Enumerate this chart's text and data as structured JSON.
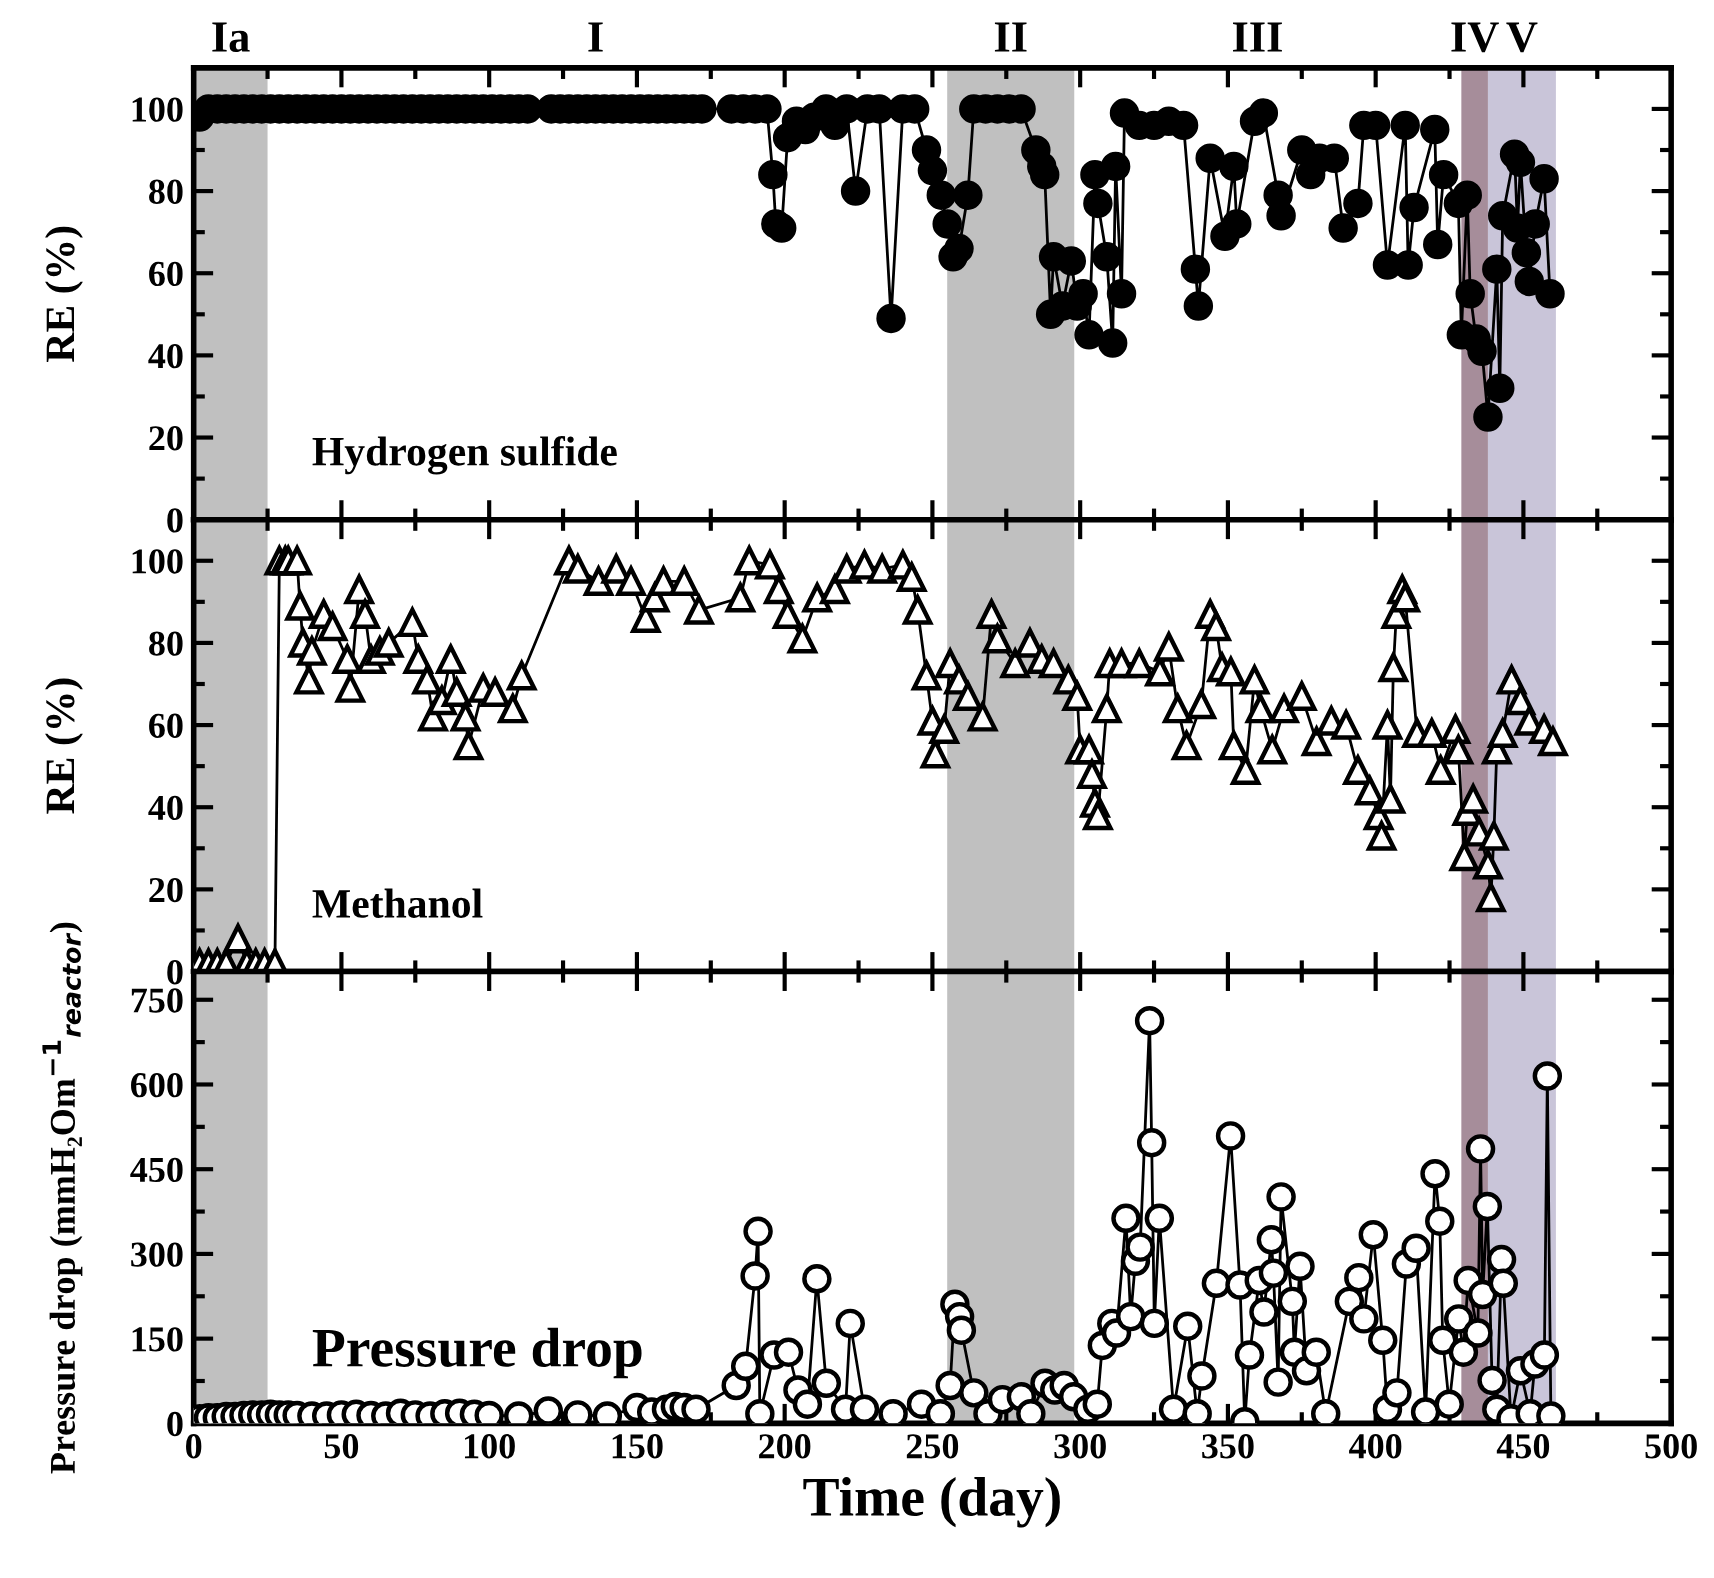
{
  "chart_data": [
    {
      "type": "line",
      "ylabel": "RE (%)",
      "xlim": [
        0,
        500
      ],
      "xticks": [
        0,
        50,
        100,
        150,
        200,
        250,
        300,
        350,
        400,
        450,
        500
      ],
      "ylim": [
        0,
        110
      ],
      "yticks": [
        0,
        20,
        40,
        60,
        80,
        100
      ],
      "tick_labels": "y",
      "marker": "circle",
      "line_style": "solid",
      "grid": false,
      "annotations": [
        "Hydrogen sulfide",
        "I",
        "III"
      ],
      "bands": [
        {
          "axis": "x",
          "from": 0,
          "to": 25,
          "color": "#c0c0c0",
          "label": "Ia"
        },
        {
          "axis": "x",
          "from": 255,
          "to": 298,
          "color": "#c0c0c0",
          "label": "II"
        },
        {
          "axis": "x",
          "from": 429,
          "to": 438,
          "color": "#a68d9a",
          "label": "IV"
        },
        {
          "axis": "x",
          "from": 438,
          "to": 461,
          "color": "#c9c5d9",
          "label": "V"
        }
      ],
      "series": [
        {
          "color": "#000000",
          "x": [
            2,
            5,
            8,
            11,
            14,
            17,
            20,
            23,
            26,
            29,
            32,
            35,
            38,
            41,
            44,
            47,
            50,
            53,
            56,
            59,
            62,
            65,
            68,
            71,
            74,
            77,
            80,
            83,
            86,
            89,
            92,
            95,
            98,
            101,
            104,
            107,
            110,
            113,
            121,
            124,
            127,
            130,
            133,
            136,
            139,
            142,
            145,
            148,
            151,
            154,
            157,
            160,
            163,
            166,
            169,
            172,
            182,
            186,
            190,
            194,
            196,
            197,
            199,
            201,
            204,
            207,
            210,
            214,
            217,
            221,
            224,
            228,
            232,
            236,
            240,
            244,
            248,
            250,
            253,
            255,
            257,
            259,
            262,
            264,
            268,
            272,
            276,
            280,
            285,
            287,
            288,
            290,
            291,
            294,
            297,
            299,
            301,
            303,
            305,
            306,
            309,
            311,
            312,
            314,
            315,
            320,
            325,
            330,
            335,
            339,
            340,
            344,
            349,
            352,
            353,
            359,
            362,
            367,
            368,
            375,
            378,
            381,
            386,
            389,
            394,
            396,
            400,
            404,
            410,
            411,
            413,
            420,
            421,
            423,
            428,
            429,
            431,
            432,
            434,
            436,
            438,
            441,
            442,
            443,
            447,
            448,
            449,
            451,
            452,
            454,
            457,
            459
          ],
          "values": [
            98,
            100,
            100,
            100,
            100,
            100,
            100,
            100,
            100,
            100,
            100,
            100,
            100,
            100,
            100,
            100,
            100,
            100,
            100,
            100,
            100,
            100,
            100,
            100,
            100,
            100,
            100,
            100,
            100,
            100,
            100,
            100,
            100,
            100,
            100,
            100,
            100,
            100,
            100,
            100,
            100,
            100,
            100,
            100,
            100,
            100,
            100,
            100,
            100,
            100,
            100,
            100,
            100,
            100,
            100,
            100,
            100,
            100,
            100,
            100,
            84,
            72,
            71,
            93,
            97,
            95,
            98,
            100,
            96,
            100,
            80,
            100,
            100,
            49,
            100,
            100,
            90,
            85,
            79,
            72,
            64,
            66,
            79,
            100,
            100,
            100,
            100,
            100,
            90,
            86,
            84,
            50,
            64,
            52,
            63,
            52,
            55,
            45,
            84,
            77,
            64,
            43,
            86,
            55,
            99,
            96,
            96,
            97,
            96,
            61,
            52,
            88,
            69,
            86,
            72,
            97,
            99,
            79,
            74,
            90,
            84,
            88,
            88,
            71,
            77,
            96,
            96,
            62,
            96,
            62,
            76,
            95,
            67,
            84,
            77,
            45,
            79,
            55,
            44,
            41,
            25,
            61,
            32,
            74,
            89,
            71,
            87,
            65,
            58,
            72,
            83,
            55
          ]
        }
      ]
    },
    {
      "type": "line",
      "ylabel": "RE (%)",
      "xlim": [
        0,
        500
      ],
      "xticks": [
        0,
        50,
        100,
        150,
        200,
        250,
        300,
        350,
        400,
        450,
        500
      ],
      "ylim": [
        0,
        110
      ],
      "yticks": [
        0,
        20,
        40,
        60,
        80,
        100
      ],
      "tick_labels": "y",
      "marker": "triangle",
      "line_style": "solid",
      "grid": false,
      "annotations": [
        "Methanol"
      ],
      "bands": [
        {
          "axis": "x",
          "from": 0,
          "to": 25,
          "color": "#c0c0c0"
        },
        {
          "axis": "x",
          "from": 255,
          "to": 298,
          "color": "#c0c0c0"
        },
        {
          "axis": "x",
          "from": 429,
          "to": 438,
          "color": "#a68d9a"
        },
        {
          "axis": "x",
          "from": 438,
          "to": 461,
          "color": "#c9c5d9"
        }
      ],
      "series": [
        {
          "color": "#ffffff",
          "x": [
            2,
            5,
            8,
            11,
            15,
            18,
            21,
            24,
            27.5,
            29,
            31,
            32,
            35,
            36,
            37,
            39,
            40,
            44,
            47,
            52,
            53,
            56,
            58,
            60,
            63,
            66,
            74,
            76,
            79,
            81,
            84,
            87,
            89,
            92,
            93,
            98,
            102,
            108,
            111,
            127,
            130,
            137,
            143,
            148,
            153,
            156,
            159,
            166,
            171,
            185,
            188,
            195,
            198,
            201,
            206,
            211,
            217,
            221,
            227,
            233,
            240,
            243,
            245,
            248,
            250,
            251,
            254,
            256,
            259,
            262,
            267,
            270,
            272,
            278,
            283,
            287,
            291,
            296,
            299,
            300,
            303,
            304,
            305,
            306,
            309,
            310,
            314,
            320,
            327,
            330,
            333,
            336,
            341,
            344,
            346,
            348,
            351,
            352,
            356,
            359,
            361,
            365,
            369,
            375,
            380,
            385,
            390,
            394,
            398,
            401,
            402,
            404,
            405,
            406,
            407,
            409,
            410,
            414,
            419,
            422,
            427,
            428,
            430,
            431,
            433,
            435,
            438,
            439,
            440,
            441,
            443,
            446,
            449,
            452,
            457,
            460
          ],
          "values": [
            2,
            2,
            2,
            2,
            8,
            2,
            2,
            2,
            2,
            100,
            100,
            100,
            100,
            89,
            80,
            71,
            78,
            87,
            84,
            76,
            69,
            93,
            87,
            76,
            78,
            80,
            85,
            76,
            71,
            62,
            66,
            76,
            68,
            62,
            55,
            69,
            68,
            64,
            72,
            100,
            98,
            95,
            98,
            95,
            86,
            91,
            95,
            95,
            88,
            91,
            100,
            99,
            93,
            87,
            81,
            91,
            93,
            98,
            99,
            98,
            99,
            96,
            88,
            72,
            61,
            53,
            59,
            75,
            71,
            67,
            62,
            87,
            81,
            75,
            80,
            76,
            75,
            71,
            67,
            54,
            54,
            48,
            41,
            38,
            64,
            75,
            75,
            75,
            73,
            79,
            64,
            55,
            65,
            87,
            84,
            74,
            73,
            55,
            49,
            71,
            64,
            54,
            64,
            67,
            56,
            61,
            60,
            49,
            44,
            38,
            33,
            60,
            42,
            74,
            87,
            93,
            91,
            58,
            58,
            49,
            59,
            54,
            28,
            39,
            42,
            34,
            26,
            18,
            33,
            54,
            58,
            71,
            66,
            61,
            59,
            56
          ]
        }
      ]
    },
    {
      "type": "line",
      "ylabel": "Pressure drop (mmH₂Om$^{−1}$$_{reactor}$)",
      "xlabel": "Time (day)",
      "xlim": [
        0,
        500
      ],
      "xticks": [
        0,
        50,
        100,
        150,
        200,
        250,
        300,
        350,
        400,
        450,
        500
      ],
      "ylim": [
        0,
        800
      ],
      "yticks": [
        0,
        150,
        300,
        450,
        600,
        750
      ],
      "marker": "circle",
      "line_style": "solid",
      "grid": false,
      "annotations": [
        "Pressure drop"
      ],
      "bands": [
        {
          "axis": "x",
          "from": 0,
          "to": 25,
          "color": "#c0c0c0"
        },
        {
          "axis": "x",
          "from": 255,
          "to": 298,
          "color": "#c0c0c0"
        },
        {
          "axis": "x",
          "from": 429,
          "to": 438,
          "color": "#a68d9a"
        },
        {
          "axis": "x",
          "from": 438,
          "to": 461,
          "color": "#c9c5d9"
        }
      ],
      "series": [
        {
          "color": "#ffffff",
          "x": [
            2,
            5,
            8,
            11,
            14,
            17,
            20,
            23,
            26,
            29,
            32,
            35,
            40,
            45,
            50,
            55,
            60,
            65,
            70,
            75,
            80,
            85,
            90,
            95,
            100,
            110,
            120,
            130,
            140,
            150,
            155,
            160,
            163,
            166,
            170,
            183.6,
            186.8,
            190,
            191,
            191.6,
            196.4,
            201.3,
            204.5,
            207.7,
            210.9,
            214.1,
            220.6,
            222.2,
            227,
            236.7,
            246.3,
            252.7,
            256,
            257.6,
            259.2,
            259.8,
            264,
            268.8,
            273.7,
            280.1,
            283.3,
            288.1,
            291.4,
            294.6,
            297.8,
            302.6,
            305.8,
            307.5,
            310.7,
            312.3,
            315.5,
            317.1,
            318.7,
            320.3,
            323.5,
            324.2,
            325.1,
            326.8,
            331.6,
            336.4,
            339.6,
            341.2,
            346.1,
            350.9,
            354.1,
            355.7,
            357.3,
            360.6,
            362.2,
            364.7,
            365.4,
            367,
            368,
            371.8,
            372.5,
            374.4,
            376.6,
            379.9,
            383.1,
            391.1,
            394.3,
            396,
            399.2,
            402.4,
            404,
            407.2,
            410.4,
            413.7,
            416.9,
            420.1,
            421.7,
            422.7,
            424.9,
            428.1,
            429.7,
            431.3,
            434.6,
            435.5,
            436.2,
            437.8,
            439.4,
            441,
            442.6,
            443.2,
            445.8,
            449,
            452.3,
            453.9,
            457.1,
            458.1,
            459.3
          ],
          "values": [
            8,
            10,
            10,
            12,
            12,
            14,
            15,
            15,
            16,
            15,
            15,
            14,
            13,
            13,
            15,
            16,
            14,
            13,
            18,
            15,
            13,
            17,
            18,
            16,
            14,
            13,
            22,
            15,
            13,
            28,
            20,
            25,
            30,
            28,
            25,
            67,
            101,
            261,
            340,
            17,
            121,
            126,
            59,
            34,
            256,
            71,
            25,
            177,
            25,
            17,
            34,
            17,
            67,
            211,
            189,
            165,
            54,
            17,
            42,
            47,
            17,
            71,
            59,
            67,
            47,
            25,
            34,
            138,
            177,
            160,
            363,
            189,
            287,
            312,
            713,
            497,
            177,
            363,
            25,
            172,
            17,
            84,
            248,
            509,
            245,
            3,
            121,
            253,
            197,
            325,
            266,
            73,
            401,
            216,
            126,
            278,
            93,
            126,
            17,
            216,
            258,
            185,
            334,
            147,
            25,
            54,
            282,
            310,
            20,
            442,
            358,
            147,
            34,
            185,
            126,
            253,
            160,
            486,
            228,
            384,
            76,
            25,
            290,
            248,
            8,
            93,
            17,
            105,
            121,
            615,
            13
          ]
        }
      ]
    }
  ]
}
